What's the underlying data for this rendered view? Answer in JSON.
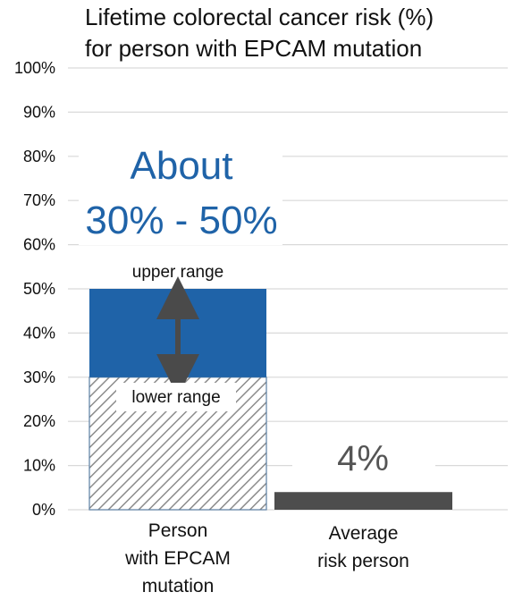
{
  "chart_data": {
    "type": "bar",
    "title_lines": [
      "Lifetime colorectal cancer risk (%)",
      "for person with EPCAM mutation"
    ],
    "ylim": [
      0,
      100
    ],
    "yticks": [
      0,
      10,
      20,
      30,
      40,
      50,
      60,
      70,
      80,
      90,
      100
    ],
    "ytick_labels": [
      "0%",
      "10%",
      "20%",
      "30%",
      "40%",
      "50%",
      "60%",
      "70%",
      "80%",
      "90%",
      "100%"
    ],
    "categories": [
      [
        "Person",
        "with EPCAM",
        "mutation"
      ],
      [
        "Average",
        "risk person"
      ]
    ],
    "bars": [
      {
        "lower": 30,
        "upper": 50
      },
      {
        "value": 4
      }
    ],
    "annotations": {
      "headline_lines": [
        "About",
        "30% - 50%"
      ],
      "upper_label": "upper range",
      "lower_label": "lower range",
      "average_value_label": "4%"
    },
    "grid": true,
    "colors": {
      "upper_fill": "#1f63a8",
      "hatch_stroke": "#8c8c8c",
      "hatch_border": "#5b7fa3",
      "arrow": "#4a4a4a",
      "average_fill": "#4d4d4d",
      "grid": "#d9d9d9",
      "headline": "#1f63a8"
    }
  }
}
